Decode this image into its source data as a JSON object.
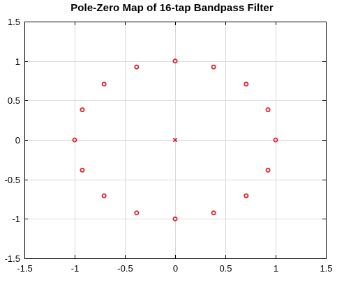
{
  "chart_data": {
    "type": "scatter",
    "title": "Pole-Zero Map of 16-tap Bandpass Filter",
    "xlabel": "",
    "ylabel": "",
    "xlim": [
      -1.5,
      1.5
    ],
    "ylim": [
      -1.5,
      1.5
    ],
    "xticks": [
      -1.5,
      -1,
      -0.5,
      0,
      0.5,
      1,
      1.5
    ],
    "yticks": [
      -1.5,
      -1,
      -0.5,
      0,
      0.5,
      1,
      1.5
    ],
    "xtick_labels": [
      "-1.5",
      "-1",
      "-0.5",
      "0",
      "0.5",
      "1",
      "1.5"
    ],
    "ytick_labels": [
      "-1.5",
      "-1",
      "-0.5",
      "0",
      "0.5",
      "1",
      "1.5"
    ],
    "grid": true,
    "colors": {
      "zero": "#e0202a",
      "pole": "#d81e1e",
      "grid": "#d9d9d9",
      "axes": "#000000"
    },
    "series": [
      {
        "marker": "o",
        "x": [
          1,
          0.924,
          0.707,
          0.383,
          0,
          -0.383,
          -0.707,
          -0.924,
          -1,
          -0.924,
          -0.707,
          -0.383,
          0,
          0.383,
          0.707,
          0.924
        ],
        "y": [
          0,
          0.383,
          0.707,
          0.924,
          1,
          0.924,
          0.707,
          0.383,
          0,
          -0.383,
          -0.707,
          -0.924,
          -1,
          -0.924,
          -0.707,
          -0.383
        ]
      },
      {
        "marker": "x",
        "x": [
          0
        ],
        "y": [
          0
        ]
      }
    ]
  }
}
